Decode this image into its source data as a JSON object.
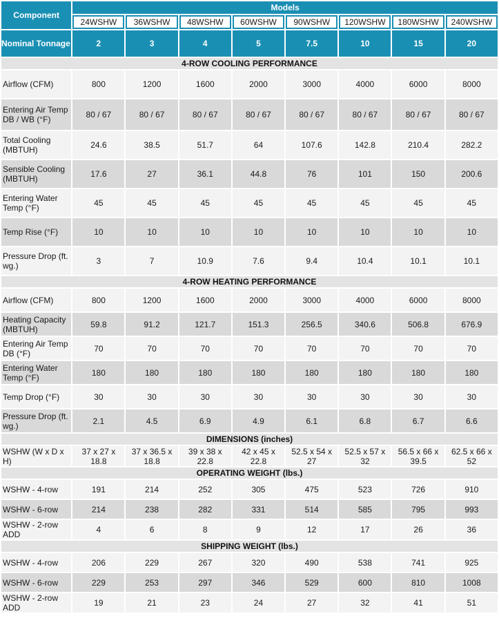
{
  "header": {
    "component_label": "Component",
    "models_label": "Models",
    "models": [
      "24WSHW",
      "36WSHW",
      "48WSHW",
      "60WSHW",
      "90WSHW",
      "120WSHW",
      "180WSHW",
      "240WSHW"
    ],
    "tonnage_label": "Nominal Tonnage",
    "tonnage": [
      "2",
      "3",
      "4",
      "5",
      "7.5",
      "10",
      "15",
      "20"
    ]
  },
  "sections": [
    {
      "title": "4-ROW COOLING PERFORMANCE",
      "rows": [
        {
          "label": "Airflow (CFM)",
          "values": [
            "800",
            "1200",
            "1600",
            "2000",
            "3000",
            "4000",
            "6000",
            "8000"
          ]
        },
        {
          "label": "Entering Air Temp DB / WB (°F)",
          "values": [
            "80 / 67",
            "80 / 67",
            "80 / 67",
            "80 / 67",
            "80 / 67",
            "80 / 67",
            "80 / 67",
            "80 / 67"
          ]
        },
        {
          "label": "Total Cooling (MBTUH)",
          "values": [
            "24.6",
            "38.5",
            "51.7",
            "64",
            "107.6",
            "142.8",
            "210.4",
            "282.2"
          ]
        },
        {
          "label": "Sensible Cooling (MBTUH)",
          "values": [
            "17.6",
            "27",
            "36.1",
            "44.8",
            "76",
            "101",
            "150",
            "200.6"
          ]
        },
        {
          "label": "Entering Water Temp (°F)",
          "values": [
            "45",
            "45",
            "45",
            "45",
            "45",
            "45",
            "45",
            "45"
          ]
        },
        {
          "label": "Temp Rise (°F)",
          "values": [
            "10",
            "10",
            "10",
            "10",
            "10",
            "10",
            "10",
            "10"
          ]
        },
        {
          "label": "Pressure Drop (ft. wg.)",
          "values": [
            "3",
            "7",
            "10.9",
            "7.6",
            "9.4",
            "10.4",
            "10.1",
            "10.1"
          ]
        }
      ]
    },
    {
      "title": "4-ROW HEATING PERFORMANCE",
      "rows": [
        {
          "label": "Airflow (CFM)",
          "values": [
            "800",
            "1200",
            "1600",
            "2000",
            "3000",
            "4000",
            "6000",
            "8000"
          ]
        },
        {
          "label": "Heating Capacity (MBTUH)",
          "values": [
            "59.8",
            "91.2",
            "121.7",
            "151.3",
            "256.5",
            "340.6",
            "506.8",
            "676.9"
          ]
        },
        {
          "label": "Entering Air Temp DB (°F)",
          "values": [
            "70",
            "70",
            "70",
            "70",
            "70",
            "70",
            "70",
            "70"
          ]
        },
        {
          "label": "Entering Water Temp (°F)",
          "values": [
            "180",
            "180",
            "180",
            "180",
            "180",
            "180",
            "180",
            "180"
          ]
        },
        {
          "label": "Temp Drop (°F)",
          "values": [
            "30",
            "30",
            "30",
            "30",
            "30",
            "30",
            "30",
            "30"
          ]
        },
        {
          "label": "Pressure Drop (ft. wg.)",
          "values": [
            "2.1",
            "4.5",
            "6.9",
            "4.9",
            "6.1",
            "6.8",
            "6.7",
            "6.6"
          ]
        }
      ]
    },
    {
      "title": "DIMENSIONS (inches)",
      "rows": [
        {
          "label": "WSHW (W x D x H)",
          "values": [
            "37 x 27 x 18.8",
            "37 x 36.5 x 18.8",
            "39 x 38 x 22.8",
            "42 x 45 x 22.8",
            "52.5 x 54 x 27",
            "52.5 x 57 x 32",
            "56.5 x 66 x 39.5",
            "62.5 x 66 x 52"
          ]
        }
      ]
    },
    {
      "title": "OPERATING WEIGHT (lbs.)",
      "rows": [
        {
          "label": "WSHW - 4-row",
          "values": [
            "191",
            "214",
            "252",
            "305",
            "475",
            "523",
            "726",
            "910"
          ]
        },
        {
          "label": "WSHW - 6-row",
          "values": [
            "214",
            "238",
            "282",
            "331",
            "514",
            "585",
            "795",
            "993"
          ]
        },
        {
          "label": "WSHW - 2-row ADD",
          "values": [
            "4",
            "6",
            "8",
            "9",
            "12",
            "17",
            "26",
            "36"
          ]
        }
      ]
    },
    {
      "title": "SHIPPING WEIGHT (lbs.)",
      "rows": [
        {
          "label": "WSHW - 4-row",
          "values": [
            "206",
            "229",
            "267",
            "320",
            "490",
            "538",
            "741",
            "925"
          ]
        },
        {
          "label": "WSHW - 6-row",
          "values": [
            "229",
            "253",
            "297",
            "346",
            "529",
            "600",
            "810",
            "1008"
          ]
        },
        {
          "label": "WSHW - 2-row ADD",
          "values": [
            "19",
            "21",
            "23",
            "24",
            "27",
            "32",
            "41",
            "51"
          ]
        }
      ]
    }
  ],
  "colors": {
    "header_blue": "#1a8fb4",
    "row_light": "#f3f3f3",
    "row_dark": "#d9d9d9",
    "section_bg": "#e3e3e3"
  }
}
